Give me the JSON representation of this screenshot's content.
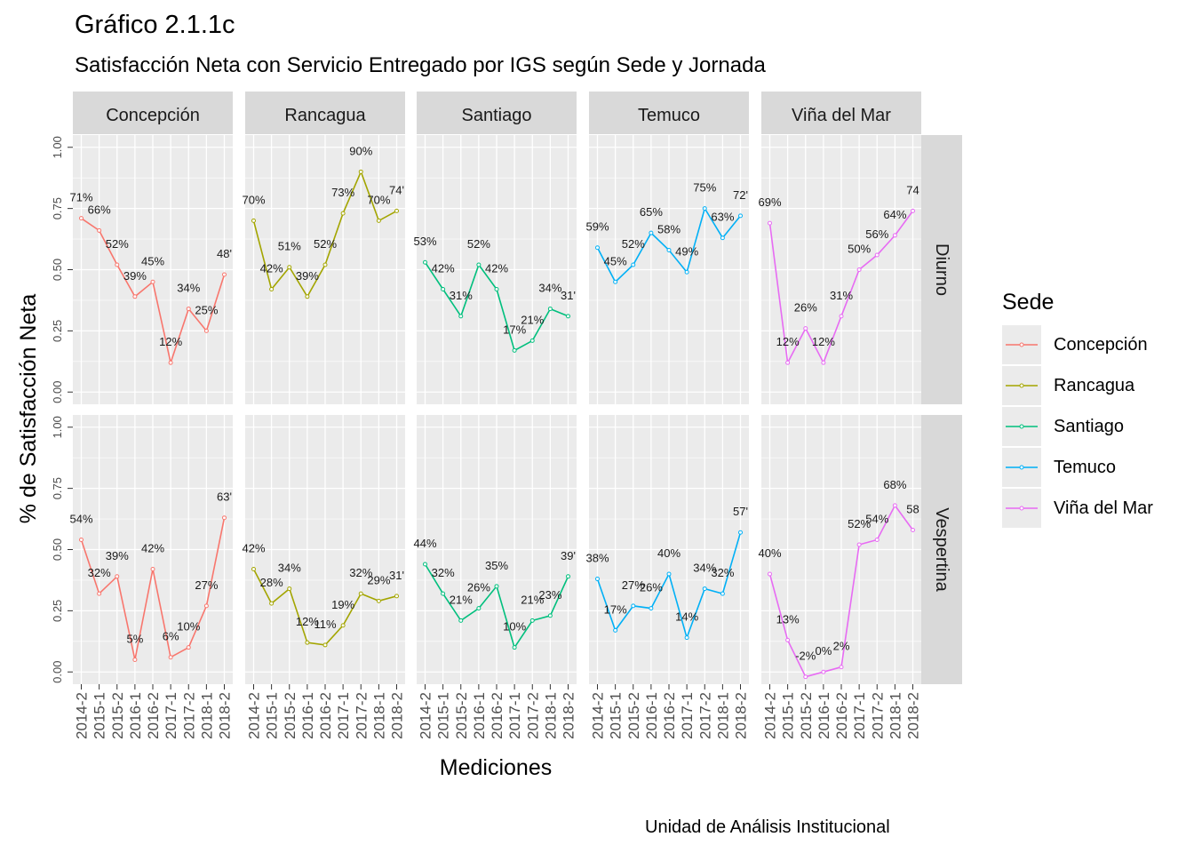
{
  "title": "Gráfico 2.1.1c",
  "subtitle": "Satisfacción Neta con Servicio Entregado por IGS según Sede y Jornada",
  "caption": "Unidad de Análisis Institucional",
  "legend": {
    "title": "Sede",
    "items": [
      {
        "label": "Concepción",
        "color": "#F8766D"
      },
      {
        "label": "Rancagua",
        "color": "#A3A500"
      },
      {
        "label": "Santiago",
        "color": "#00BF7D"
      },
      {
        "label": "Temuco",
        "color": "#00B0F6"
      },
      {
        "label": "Viña del Mar",
        "color": "#E76BF3"
      }
    ]
  },
  "chart_data": {
    "type": "line",
    "xlabel": "Mediciones",
    "ylabel": "% de Satisfacción Neta",
    "ylim": [
      -0.05,
      1.05
    ],
    "yticks": [
      "0.00",
      "0.25",
      "0.50",
      "0.75",
      "1.00"
    ],
    "categories": [
      "2014-2",
      "2015-1",
      "2015-2",
      "2016-1",
      "2016-2",
      "2017-1",
      "2017-2",
      "2018-1",
      "2018-2"
    ],
    "facet_cols": [
      "Concepción",
      "Rancagua",
      "Santiago",
      "Temuco",
      "Viña del Mar"
    ],
    "facet_rows": [
      "Diurno",
      "Vespertina"
    ],
    "grid": true,
    "legend_position": "right",
    "series": {
      "Diurno": {
        "Concepción": [
          0.71,
          0.66,
          0.52,
          0.39,
          0.45,
          0.12,
          0.34,
          0.25,
          0.48
        ],
        "Rancagua": [
          0.7,
          0.42,
          0.51,
          0.39,
          0.52,
          0.73,
          0.9,
          0.7,
          0.74
        ],
        "Santiago": [
          0.53,
          0.42,
          0.31,
          0.52,
          0.42,
          0.17,
          0.21,
          0.34,
          0.31
        ],
        "Temuco": [
          0.59,
          0.45,
          0.52,
          0.65,
          0.58,
          0.49,
          0.75,
          0.63,
          0.72
        ],
        "Viña del Mar": [
          0.69,
          0.12,
          0.26,
          0.12,
          0.31,
          0.5,
          0.56,
          0.64,
          0.74
        ]
      },
      "Vespertina": {
        "Concepción": [
          0.54,
          0.32,
          0.39,
          0.05,
          0.42,
          0.06,
          0.1,
          0.27,
          0.63
        ],
        "Rancagua": [
          0.42,
          0.28,
          0.34,
          0.12,
          0.11,
          0.19,
          0.32,
          0.29,
          0.31
        ],
        "Santiago": [
          0.44,
          0.32,
          0.21,
          0.26,
          0.35,
          0.1,
          0.21,
          0.23,
          0.39
        ],
        "Temuco": [
          0.38,
          0.17,
          0.27,
          0.26,
          0.4,
          0.14,
          0.34,
          0.32,
          0.57
        ],
        "Viña del Mar": [
          0.4,
          0.13,
          -0.02,
          0.0,
          0.02,
          0.52,
          0.54,
          0.68,
          0.58
        ]
      }
    },
    "data_labels": {
      "Diurno": {
        "Concepción": [
          "71%",
          "66%",
          "52%",
          "39%",
          "45%",
          "12%",
          "34%",
          "25%",
          "48'"
        ],
        "Rancagua": [
          "70%",
          "42%",
          "51%",
          "39%",
          "52%",
          "73%",
          "90%",
          "70%",
          "74'"
        ],
        "Santiago": [
          "53%",
          "42%",
          "31%",
          "52%",
          "42%",
          "17%",
          "21%",
          "34%",
          "31'"
        ],
        "Temuco": [
          "59%",
          "45%",
          "52%",
          "65%",
          "58%",
          "49%",
          "75%",
          "63%",
          "72'"
        ],
        "Viña del Mar": [
          "69%",
          "12%",
          "26%",
          "12%",
          "31%",
          "50%",
          "56%",
          "64%",
          "74"
        ]
      },
      "Vespertina": {
        "Concepción": [
          "54%",
          "32%",
          "39%",
          "5%",
          "42%",
          "6%",
          "10%",
          "27%",
          "63'"
        ],
        "Rancagua": [
          "42%",
          "28%",
          "34%",
          "12%",
          "11%",
          "19%",
          "32%",
          "29%",
          "31'"
        ],
        "Santiago": [
          "44%",
          "32%",
          "21%",
          "26%",
          "35%",
          "10%",
          "21%",
          "23%",
          "39'"
        ],
        "Temuco": [
          "38%",
          "17%",
          "27%",
          "26%",
          "40%",
          "14%",
          "34%",
          "32%",
          "57'"
        ],
        "Viña del Mar": [
          "40%",
          "13%",
          "-2%",
          "0%",
          "2%",
          "52%",
          "54%",
          "68%",
          "58"
        ]
      }
    }
  }
}
